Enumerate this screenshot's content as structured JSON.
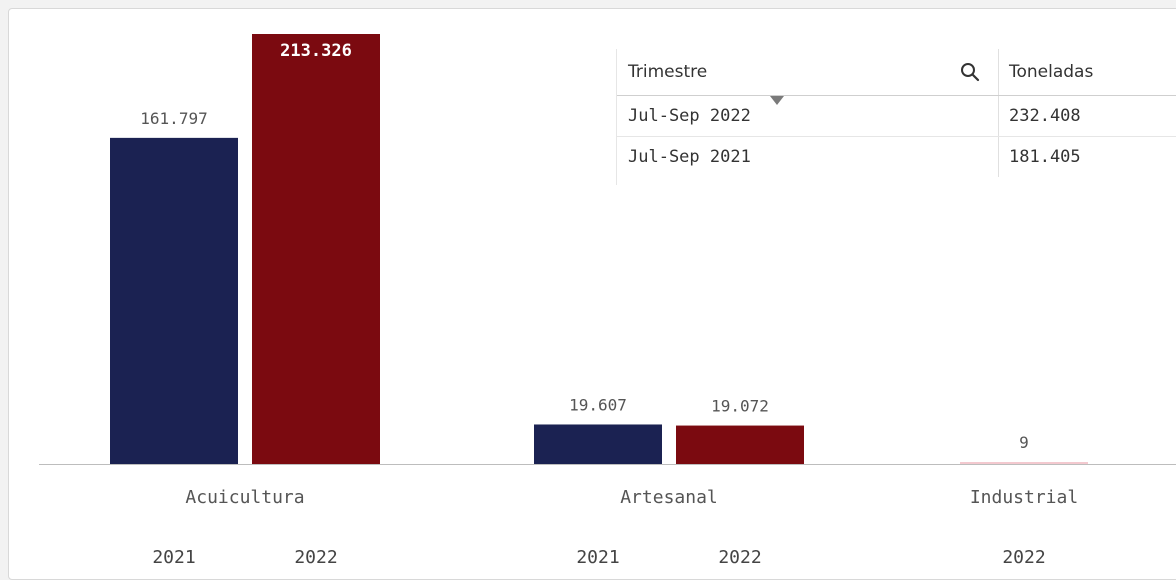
{
  "chart_data": {
    "type": "bar",
    "groups": [
      {
        "category": "Acuicultura",
        "bars": [
          {
            "year": "2021",
            "value": 161797,
            "label": "161.797"
          },
          {
            "year": "2022",
            "value": 213326,
            "label": "213.326"
          }
        ]
      },
      {
        "category": "Artesanal",
        "bars": [
          {
            "year": "2021",
            "value": 19607,
            "label": "19.607"
          },
          {
            "year": "2022",
            "value": 19072,
            "label": "19.072"
          }
        ]
      },
      {
        "category": "Industrial",
        "bars": [
          {
            "year": "2022",
            "value": 9,
            "label": "9"
          }
        ]
      }
    ],
    "ylim": [
      0,
      213326
    ],
    "colors": {
      "2021": "#1b2252",
      "2022": "#7b0a10",
      "industrial_2022": "#f3c9cf"
    },
    "grid": false,
    "legend": "none"
  },
  "table": {
    "columns": [
      "Trimestre",
      "Toneladas"
    ],
    "rows": [
      {
        "trimestre": "Jul-Sep 2022",
        "toneladas": "232.408"
      },
      {
        "trimestre": "Jul-Sep 2021",
        "toneladas": "181.405"
      }
    ],
    "search_icon": "search-icon",
    "sort_icon": "sort-desc-icon"
  }
}
